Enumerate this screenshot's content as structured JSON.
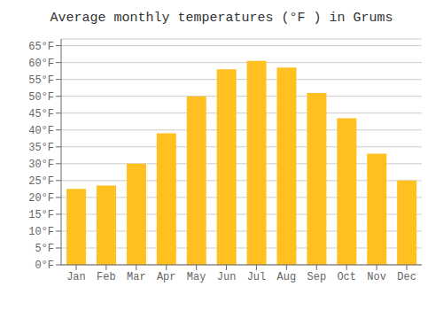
{
  "chart_data": {
    "type": "bar",
    "title": "Average monthly temperatures (°F ) in Grums",
    "categories": [
      "Jan",
      "Feb",
      "Mar",
      "Apr",
      "May",
      "Jun",
      "Jul",
      "Aug",
      "Sep",
      "Oct",
      "Nov",
      "Dec"
    ],
    "values": [
      22.5,
      23.5,
      30.0,
      39.0,
      50.0,
      58.0,
      60.5,
      58.5,
      51.0,
      43.5,
      33.0,
      25.0
    ],
    "color": "#FFC020",
    "ylim": [
      0,
      67
    ],
    "yticks": [
      {
        "value": 0,
        "label": "0°F"
      },
      {
        "value": 5,
        "label": "5°F"
      },
      {
        "value": 10,
        "label": "10°F"
      },
      {
        "value": 15,
        "label": "15°F"
      },
      {
        "value": 20,
        "label": "20°F"
      },
      {
        "value": 25,
        "label": "25°F"
      },
      {
        "value": 30,
        "label": "30°F"
      },
      {
        "value": 35,
        "label": "35°F"
      },
      {
        "value": 40,
        "label": "40°F"
      },
      {
        "value": 45,
        "label": "45°F"
      },
      {
        "value": 50,
        "label": "50°F"
      },
      {
        "value": 55,
        "label": "55°F"
      },
      {
        "value": 60,
        "label": "60°F"
      },
      {
        "value": 65,
        "label": "65°F"
      }
    ],
    "grid": true
  }
}
